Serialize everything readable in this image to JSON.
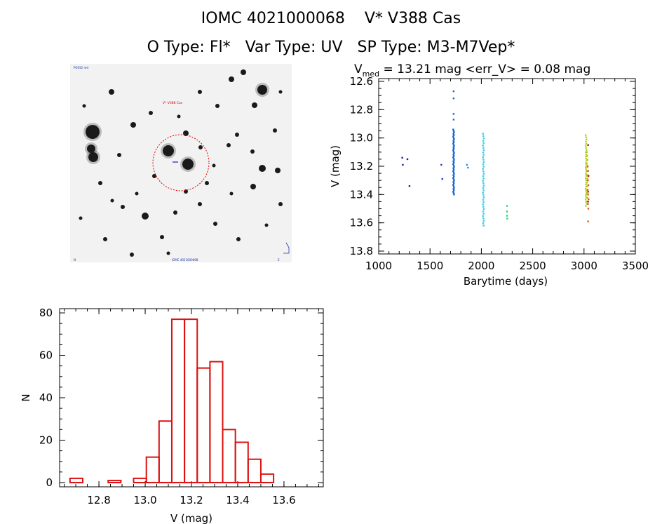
{
  "header": {
    "title_line1": "IOMC 4021000068    V* V388 Cas",
    "title_line2": "O Type: Fl*   Var Type: UV   SP Type: M3-M7Vep*"
  },
  "sky_image": {
    "top_left_label": "POSS2 red",
    "marker_label": "V* V388 Cas",
    "bottom_label": "IOMC 4021000068",
    "bottom_left_label": "N",
    "bottom_right_label": "E"
  },
  "chart_data": [
    {
      "type": "scatter",
      "title_prefix": "V",
      "title_subscript": "med",
      "title_rest": " = 13.21 mag <err_V> = 0.08 mag",
      "xlabel": "Barytime (days)",
      "ylabel": "V (mag)",
      "xlim": [
        1000,
        3500
      ],
      "ylim": [
        13.82,
        12.58
      ],
      "y_inverted": true,
      "xticks": [
        1000,
        1500,
        2000,
        2500,
        3000,
        3500
      ],
      "yticks": [
        12.6,
        12.8,
        13.0,
        13.2,
        13.4,
        13.6,
        13.8
      ],
      "ytick_labels": [
        "12.6",
        "12.8",
        "13.0",
        "13.2",
        "13.4",
        "13.6",
        "13.8"
      ],
      "groups": [
        {
          "color": "#3b0fa0",
          "points": [
            [
              1230,
              13.14
            ],
            [
              1235,
              13.19
            ],
            [
              1280,
              13.15
            ],
            [
              1300,
              13.34
            ]
          ]
        },
        {
          "color": "#1f3fc8",
          "points": [
            [
              1610,
              13.19
            ],
            [
              1620,
              13.29
            ]
          ]
        },
        {
          "color": "#1565d8",
          "x": 1730,
          "vmin": 12.94,
          "vmax": 13.4,
          "n": 48,
          "extra": [
            12.67,
            12.72,
            12.83,
            12.87
          ]
        },
        {
          "color": "#2f8fe0",
          "points": [
            [
              1860,
              13.19
            ],
            [
              1870,
              13.21
            ]
          ]
        },
        {
          "color": "#2bd4e8",
          "x": 2020,
          "vmin": 12.97,
          "vmax": 13.62,
          "n": 40
        },
        {
          "color": "#22d67a",
          "points": [
            [
              2250,
              13.48
            ],
            [
              2250,
              13.52
            ],
            [
              2250,
              13.55
            ],
            [
              2252,
              13.57
            ]
          ]
        },
        {
          "color": "#a8d820",
          "x": 3020,
          "vmin": 12.98,
          "vmax": 13.48,
          "n": 34
        },
        {
          "color": "#d4b020",
          "x": 3030,
          "vmin": 13.1,
          "vmax": 13.45,
          "n": 14
        },
        {
          "color": "#d46010",
          "x": 3040,
          "vmin": 13.2,
          "vmax": 13.5,
          "n": 10,
          "extra": [
            13.59
          ]
        },
        {
          "color": "#a82010",
          "points": [
            [
              3040,
              13.05
            ],
            [
              3042,
              13.27
            ],
            [
              3040,
              13.38
            ],
            [
              3040,
              13.45
            ]
          ]
        }
      ]
    },
    {
      "type": "bar",
      "subtype": "histogram",
      "xlabel": "V (mag)",
      "ylabel": "N",
      "xlim": [
        12.63,
        13.77
      ],
      "ylim": [
        -2,
        82
      ],
      "xticks": [
        12.8,
        13.0,
        13.2,
        13.4,
        13.6
      ],
      "xtick_labels": [
        "12.8",
        "13.0",
        "13.2",
        "13.4",
        "13.6"
      ],
      "yticks": [
        0,
        20,
        40,
        60,
        80
      ],
      "ytick_labels": [
        "0",
        "20",
        "40",
        "60",
        "80"
      ],
      "bin_width": 0.055,
      "bin_starts": [
        12.675,
        12.785,
        12.84,
        12.95,
        13.005,
        13.06,
        13.115,
        13.17,
        13.225,
        13.28,
        13.335,
        13.39,
        13.445,
        13.5,
        13.555,
        13.61
      ],
      "values": [
        2,
        0,
        1,
        2,
        12,
        29,
        77,
        77,
        54,
        57,
        25,
        19,
        11,
        4,
        0,
        0
      ],
      "bar_color": "#dd1111"
    }
  ]
}
